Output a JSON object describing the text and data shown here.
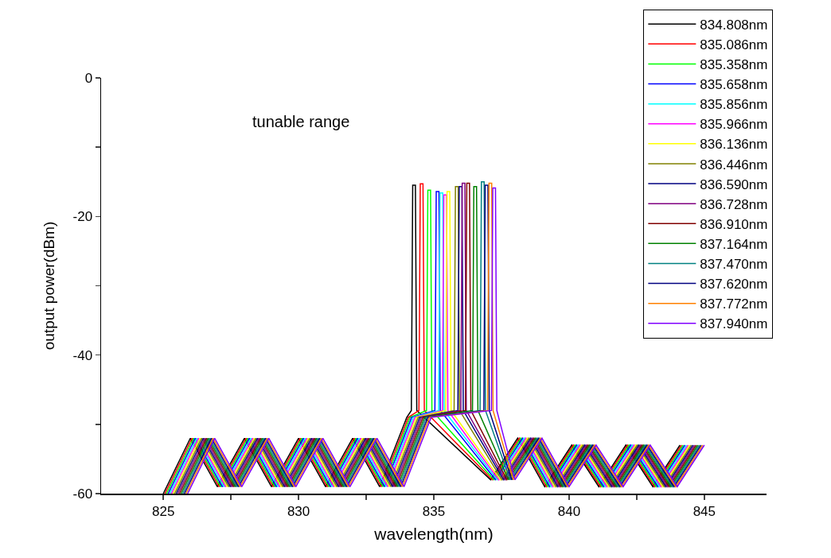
{
  "chart_data": {
    "type": "line",
    "xlabel": "wavelength(nm)",
    "ylabel": "output power(dBm)",
    "annotations": [
      "tunable range"
    ],
    "xlim": [
      822.7,
      847.3
    ],
    "ylim": [
      -60,
      0
    ],
    "xticks": [
      825,
      {
        "value": 827.5,
        "label": null
      },
      830,
      {
        "value": 832.5,
        "label": null
      },
      835,
      {
        "value": 837.5,
        "label": null
      },
      840,
      {
        "value": 842.5,
        "label": null
      },
      845
    ],
    "yticks": [
      -60,
      {
        "value": -50,
        "label": null
      },
      -40,
      {
        "value": -30,
        "label": null
      },
      -20,
      {
        "value": -10,
        "label": null
      },
      0
    ],
    "grid": false,
    "legend": "top right",
    "marker": "none",
    "line_style": "solid",
    "series": [
      {
        "name": "834.808nm",
        "color": "#000000",
        "x": [
          825,
          826,
          827,
          828,
          829,
          830,
          831,
          832,
          833,
          834,
          834.17,
          834.22,
          834.32,
          834.37,
          837.1,
          838.1,
          839.1,
          840.1,
          841.1,
          842.1,
          843.1,
          844.1
        ],
        "values": [
          -60,
          -52,
          -59,
          -52,
          -59,
          -52,
          -59,
          -52,
          -59,
          -49,
          -48,
          -15.5,
          -15.5,
          -48,
          -58,
          -52,
          -59,
          -53,
          -59,
          -53,
          -59,
          -53
        ]
      },
      {
        "name": "835.086nm",
        "color": "#ff0000",
        "x": [
          825.06,
          826.06,
          827.06,
          828.06,
          829.06,
          830.06,
          831.06,
          832.06,
          833.06,
          834.06,
          834.45,
          834.5,
          834.6,
          834.65,
          837.16,
          838.16,
          839.16,
          840.16,
          841.16,
          842.16,
          843.16,
          844.16
        ],
        "values": [
          -60,
          -52,
          -59,
          -52,
          -59,
          -52,
          -59,
          -52,
          -59,
          -49,
          -48,
          -15.3,
          -15.3,
          -48,
          -58,
          -52,
          -59,
          -53,
          -59,
          -53,
          -59,
          -53
        ]
      },
      {
        "name": "835.358nm",
        "color": "#00ff00",
        "x": [
          825.12,
          826.12,
          827.12,
          828.12,
          829.12,
          830.12,
          831.12,
          832.12,
          833.12,
          834.12,
          834.73,
          834.78,
          834.88,
          834.93,
          837.22,
          838.22,
          839.22,
          840.22,
          841.22,
          842.22,
          843.22,
          844.22
        ],
        "values": [
          -60,
          -52,
          -59,
          -52,
          -59,
          -52,
          -59,
          -52,
          -59,
          -49,
          -48,
          -16.2,
          -16.2,
          -48,
          -58,
          -52,
          -59,
          -53,
          -59,
          -53,
          -59,
          -53
        ]
      },
      {
        "name": "835.658nm",
        "color": "#0000ff",
        "x": [
          825.18,
          826.18,
          827.18,
          828.18,
          829.18,
          830.18,
          831.18,
          832.18,
          833.18,
          834.18,
          835.04,
          835.09,
          835.19,
          835.24,
          837.28,
          838.28,
          839.28,
          840.28,
          841.28,
          842.28,
          843.28,
          844.28
        ],
        "values": [
          -60,
          -52,
          -59,
          -52,
          -59,
          -52,
          -59,
          -52,
          -59,
          -49,
          -48,
          -16.4,
          -16.4,
          -48,
          -58,
          -52,
          -59,
          -53,
          -59,
          -53,
          -59,
          -53
        ]
      },
      {
        "name": "835.856nm",
        "color": "#00ffff",
        "x": [
          825.24,
          826.24,
          827.24,
          828.24,
          829.24,
          830.24,
          831.24,
          832.24,
          833.24,
          834.24,
          835.18,
          835.23,
          835.33,
          835.38,
          837.34,
          838.34,
          839.34,
          840.34,
          841.34,
          842.34,
          843.34,
          844.34
        ],
        "values": [
          -60,
          -52,
          -59,
          -52,
          -59,
          -52,
          -59,
          -52,
          -59,
          -49,
          -48,
          -16.6,
          -16.6,
          -48,
          -58,
          -52,
          -59,
          -53,
          -59,
          -53,
          -59,
          -53
        ]
      },
      {
        "name": "835.966nm",
        "color": "#ff00ff",
        "x": [
          825.3,
          826.3,
          827.3,
          828.3,
          829.3,
          830.3,
          831.3,
          832.3,
          833.3,
          834.3,
          835.32,
          835.37,
          835.47,
          835.52,
          837.4,
          838.4,
          839.4,
          840.4,
          841.4,
          842.4,
          843.4,
          844.4
        ],
        "values": [
          -60,
          -52,
          -59,
          -52,
          -59,
          -52,
          -59,
          -52,
          -59,
          -49,
          -48,
          -16.9,
          -16.9,
          -48,
          -58,
          -52,
          -59,
          -53,
          -59,
          -53,
          -59,
          -53
        ]
      },
      {
        "name": "836.136nm",
        "color": "#ffff00",
        "x": [
          825.36,
          826.36,
          827.36,
          828.36,
          829.36,
          830.36,
          831.36,
          832.36,
          833.36,
          834.36,
          835.44,
          835.49,
          835.59,
          835.64,
          837.46,
          838.46,
          839.46,
          840.46,
          841.46,
          842.46,
          843.46,
          844.46
        ],
        "values": [
          -60,
          -52,
          -59,
          -52,
          -59,
          -52,
          -59,
          -52,
          -59,
          -49,
          -48,
          -16.4,
          -16.4,
          -48,
          -58,
          -52,
          -59,
          -53,
          -59,
          -53,
          -59,
          -53
        ]
      },
      {
        "name": "836.446nm",
        "color": "#808000",
        "x": [
          825.42,
          826.42,
          827.42,
          828.42,
          829.42,
          830.42,
          831.42,
          832.42,
          833.42,
          834.42,
          835.75,
          835.8,
          835.9,
          835.95,
          837.52,
          838.52,
          839.52,
          840.52,
          841.52,
          842.52,
          843.52,
          844.52
        ],
        "values": [
          -60,
          -52,
          -59,
          -52,
          -59,
          -52,
          -59,
          -52,
          -59,
          -49,
          -48,
          -15.7,
          -15.7,
          -48,
          -58,
          -52,
          -59,
          -53,
          -59,
          -53,
          -59,
          -53
        ]
      },
      {
        "name": "836.590nm",
        "color": "#000080",
        "x": [
          825.48,
          826.48,
          827.48,
          828.48,
          829.48,
          830.48,
          831.48,
          832.48,
          833.48,
          834.48,
          835.89,
          835.94,
          836.04,
          836.09,
          837.58,
          838.58,
          839.58,
          840.58,
          841.58,
          842.58,
          843.58,
          844.58
        ],
        "values": [
          -60,
          -52,
          -59,
          -52,
          -59,
          -52,
          -59,
          -52,
          -59,
          -49,
          -48,
          -15.7,
          -15.7,
          -48,
          -58,
          -52,
          -59,
          -53,
          -59,
          -53,
          -59,
          -53
        ]
      },
      {
        "name": "836.728nm",
        "color": "#800080",
        "x": [
          825.54,
          826.54,
          827.54,
          828.54,
          829.54,
          830.54,
          831.54,
          832.54,
          833.54,
          834.54,
          836.0,
          836.05,
          836.15,
          836.2,
          837.64,
          838.64,
          839.64,
          840.64,
          841.64,
          842.64,
          843.64,
          844.64
        ],
        "values": [
          -60,
          -52,
          -59,
          -52,
          -59,
          -52,
          -59,
          -52,
          -59,
          -49,
          -48,
          -15.2,
          -15.2,
          -48,
          -58,
          -52,
          -59,
          -53,
          -59,
          -53,
          -59,
          -53
        ]
      },
      {
        "name": "836.910nm",
        "color": "#800000",
        "x": [
          825.6,
          826.6,
          827.6,
          828.6,
          829.6,
          830.6,
          831.6,
          832.6,
          833.6,
          834.6,
          836.17,
          836.22,
          836.32,
          836.37,
          837.7,
          838.7,
          839.7,
          840.7,
          841.7,
          842.7,
          843.7,
          844.7
        ],
        "values": [
          -60,
          -52,
          -59,
          -52,
          -59,
          -52,
          -59,
          -52,
          -59,
          -49,
          -48,
          -15.2,
          -15.2,
          -48,
          -58,
          -52,
          -59,
          -53,
          -59,
          -53,
          -59,
          -53
        ]
      },
      {
        "name": "837.164nm",
        "color": "#008000",
        "x": [
          825.66,
          826.66,
          827.66,
          828.66,
          829.66,
          830.66,
          831.66,
          832.66,
          833.66,
          834.66,
          836.43,
          836.48,
          836.58,
          836.63,
          837.76,
          838.76,
          839.76,
          840.76,
          841.76,
          842.76,
          843.76,
          844.76
        ],
        "values": [
          -60,
          -52,
          -59,
          -52,
          -59,
          -52,
          -59,
          -52,
          -59,
          -49,
          -48,
          -15.7,
          -15.7,
          -48,
          -58,
          -52,
          -59,
          -53,
          -59,
          -53,
          -59,
          -53
        ]
      },
      {
        "name": "837.470nm",
        "color": "#008080",
        "x": [
          825.72,
          826.72,
          827.72,
          828.72,
          829.72,
          830.72,
          831.72,
          832.72,
          833.72,
          834.72,
          836.71,
          836.76,
          836.86,
          836.91,
          837.82,
          838.82,
          839.82,
          840.82,
          841.82,
          842.82,
          843.82,
          844.82
        ],
        "values": [
          -60,
          -52,
          -59,
          -52,
          -59,
          -52,
          -59,
          -52,
          -59,
          -49,
          -48,
          -15.0,
          -15.0,
          -48,
          -58,
          -52,
          -59,
          -53,
          -59,
          -53,
          -59,
          -53
        ]
      },
      {
        "name": "837.620nm",
        "color": "#000080",
        "x": [
          825.78,
          826.78,
          827.78,
          828.78,
          829.78,
          830.78,
          831.78,
          832.78,
          833.78,
          834.78,
          836.85,
          836.9,
          837.0,
          837.05,
          837.88,
          838.88,
          839.88,
          840.88,
          841.88,
          842.88,
          843.88,
          844.88
        ],
        "values": [
          -60,
          -52,
          -59,
          -52,
          -59,
          -52,
          -59,
          -52,
          -59,
          -49,
          -48,
          -15.5,
          -15.5,
          -48,
          -58,
          -52,
          -59,
          -53,
          -59,
          -53,
          -59,
          -53
        ]
      },
      {
        "name": "837.772nm",
        "color": "#ff8000",
        "x": [
          825.84,
          826.84,
          827.84,
          828.84,
          829.84,
          830.84,
          831.84,
          832.84,
          833.84,
          834.84,
          836.99,
          837.04,
          837.14,
          837.19,
          837.94,
          838.94,
          839.94,
          840.94,
          841.94,
          842.94,
          843.94,
          844.94
        ],
        "values": [
          -60,
          -52,
          -59,
          -52,
          -59,
          -52,
          -59,
          -52,
          -59,
          -49,
          -48,
          -15.2,
          -15.2,
          -48,
          -58,
          -52,
          -59,
          -53,
          -59,
          -53,
          -59,
          -53
        ]
      },
      {
        "name": "837.940nm",
        "color": "#8000ff",
        "x": [
          825.9,
          826.9,
          827.9,
          828.9,
          829.9,
          830.9,
          831.9,
          832.9,
          833.9,
          834.9,
          837.13,
          837.18,
          837.28,
          837.33,
          838,
          839,
          840,
          841,
          842,
          843,
          844,
          845
        ],
        "values": [
          -60,
          -52,
          -59,
          -52,
          -59,
          -52,
          -59,
          -52,
          -59,
          -49,
          -48,
          -15.9,
          -15.9,
          -48,
          -58,
          -52,
          -59,
          -53,
          -59,
          -53,
          -59,
          -53
        ]
      }
    ]
  }
}
